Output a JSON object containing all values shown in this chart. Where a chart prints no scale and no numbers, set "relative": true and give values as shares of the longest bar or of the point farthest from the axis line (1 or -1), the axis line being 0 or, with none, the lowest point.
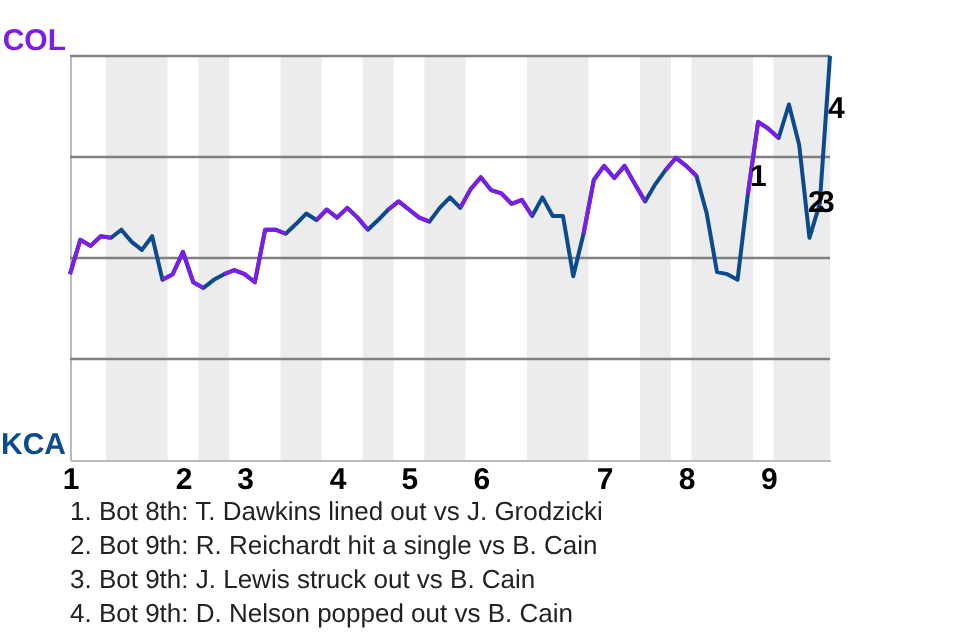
{
  "chart_data": {
    "type": "line",
    "relative": true,
    "categories": [
      "1",
      null,
      null,
      null,
      null,
      null,
      null,
      null,
      null,
      null,
      null,
      "2",
      null,
      null,
      null,
      null,
      null,
      "3",
      null,
      null,
      null,
      null,
      null,
      null,
      null,
      null,
      "4",
      null,
      null,
      null,
      null,
      null,
      null,
      "5",
      null,
      null,
      null,
      null,
      null,
      null,
      "6",
      null,
      null,
      null,
      null,
      null,
      null,
      null,
      null,
      null,
      null,
      null,
      "7",
      null,
      null,
      null,
      null,
      null,
      null,
      null,
      "8",
      null,
      null,
      null,
      null,
      null,
      null,
      null,
      "9",
      null,
      null,
      null,
      null,
      null,
      null
    ],
    "series": [
      {
        "color": "#0b4a8c",
        "values": [
          0.46,
          0.545,
          0.53,
          0.554,
          0.55,
          0.57,
          0.54,
          0.52,
          0.554,
          0.446,
          0.46,
          0.515,
          0.44,
          0.426,
          0.446,
          0.46,
          0.47,
          0.46,
          0.44,
          0.57,
          0.57,
          0.56,
          0.584,
          0.61,
          0.594,
          0.62,
          0.6,
          0.624,
          0.6,
          0.57,
          0.594,
          0.62,
          0.64,
          0.62,
          0.6,
          0.59,
          0.624,
          0.65,
          0.624,
          0.67,
          0.7,
          0.668,
          0.66,
          0.634,
          0.644,
          0.604,
          0.65,
          0.604,
          0.604,
          0.455,
          0.56,
          0.693,
          0.728,
          0.698,
          0.728,
          0.683,
          0.64,
          0.683,
          0.718,
          0.748,
          0.728,
          0.703,
          0.61,
          0.465,
          0.46,
          0.446,
          0.658,
          0.837,
          0.82,
          0.797,
          0.88,
          0.78,
          0.55,
          0.634,
          1
        ]
      },
      {
        "color": "#7b1fe8",
        "values": [
          0.46,
          0.545,
          0.53,
          0.554,
          0.55,
          null,
          null,
          null,
          null,
          0.446,
          0.46,
          0.515,
          0.44,
          0.426,
          null,
          0.46,
          0.47,
          0.46,
          0.44,
          0.57,
          0.57,
          0.56,
          null,
          null,
          0.594,
          0.62,
          0.6,
          0.624,
          0.6,
          0.57,
          null,
          0.62,
          0.64,
          0.62,
          0.6,
          0.59,
          null,
          null,
          0.624,
          0.67,
          0.7,
          0.668,
          0.66,
          0.634,
          0.644,
          0.604,
          null,
          null,
          null,
          null,
          0.56,
          0.693,
          0.728,
          0.698,
          0.728,
          0.683,
          0.64,
          null,
          0.718,
          0.748,
          0.728,
          0.703,
          null,
          null,
          null,
          null,
          0.658,
          0.837,
          0.82,
          0.797,
          null,
          null,
          null,
          null,
          null
        ]
      }
    ],
    "marker": "none",
    "line_style": "solid",
    "ref_lines": [
      {
        "axis": "y",
        "value": 0.25,
        "color": "#808080"
      },
      {
        "axis": "y",
        "value": 0.5,
        "color": "#808080"
      },
      {
        "axis": "y",
        "value": 0.75,
        "color": "#808080"
      },
      {
        "axis": "y",
        "value": 1,
        "color": "#808080"
      }
    ],
    "annotations": [
      "COL",
      "KCA",
      "1",
      "2",
      "3",
      "4",
      "1. Bot 8th: T. Dawkins lined out vs J. Grodzicki",
      "2. Bot 9th: R. Reichardt hit a single vs B. Cain",
      "3. Bot 9th: J. Lewis struck out vs B. Cain",
      "4. Bot 9th: D. Nelson popped out vs B. Cain"
    ]
  }
}
